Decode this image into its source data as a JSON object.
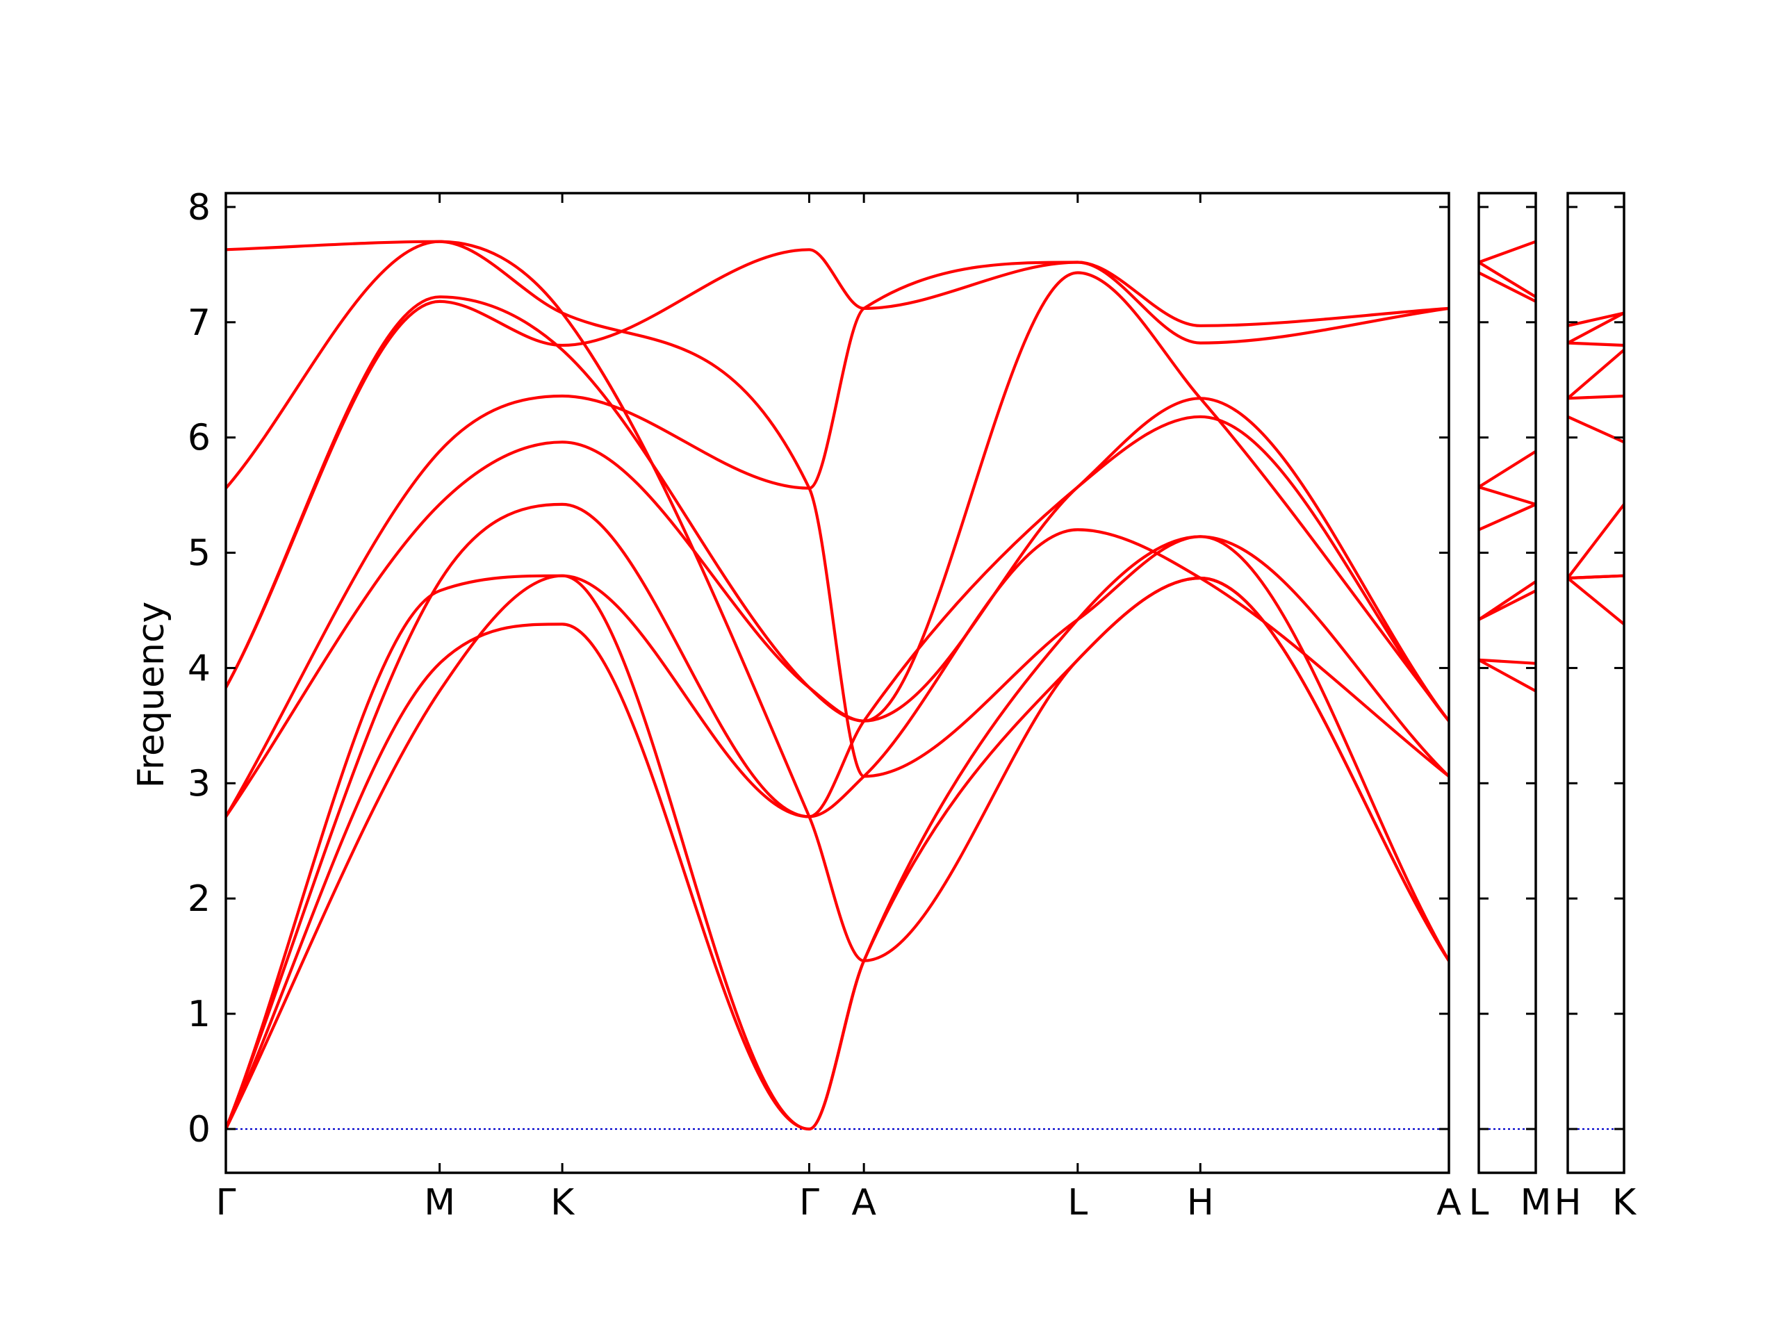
{
  "chart_data": {
    "type": "line",
    "ylabel": "Frequency",
    "ylim": [
      -0.38,
      8.12
    ],
    "yticks": [
      0,
      1,
      2,
      3,
      4,
      5,
      6,
      7,
      8
    ],
    "colors": {
      "bands": "#ff0000",
      "zero_line": "#0000cc"
    },
    "panels": [
      {
        "x_range": [
          0,
          7.38
        ],
        "kpoints": [
          {
            "label": "Γ",
            "x": 0
          },
          {
            "label": "M",
            "x": 1.29
          },
          {
            "label": "K",
            "x": 2.03
          },
          {
            "label": "Γ",
            "x": 3.52
          },
          {
            "label": "A",
            "x": 3.85
          },
          {
            "label": "L",
            "x": 5.14
          },
          {
            "label": "H",
            "x": 5.88
          },
          {
            "label": "A",
            "x": 7.38
          }
        ],
        "bands": [
          [
            [
              0,
              0
            ],
            [
              1.29,
              3.8
            ],
            [
              2.03,
              4.8
            ],
            [
              3.52,
              0
            ],
            [
              3.85,
              1.46
            ],
            [
              5.14,
              4.07
            ],
            [
              5.88,
              4.78
            ],
            [
              7.38,
              1.46
            ]
          ],
          [
            [
              0,
              0
            ],
            [
              1.29,
              4.04
            ],
            [
              2.03,
              4.38
            ],
            [
              3.52,
              0
            ],
            [
              3.85,
              1.46
            ],
            [
              5.14,
              4.42
            ],
            [
              5.88,
              5.14
            ],
            [
              7.38,
              1.46
            ]
          ],
          [
            [
              0,
              0
            ],
            [
              1.29,
              4.67
            ],
            [
              2.03,
              4.8
            ],
            [
              3.52,
              2.71
            ],
            [
              3.85,
              3.06
            ],
            [
              5.14,
              5.2
            ],
            [
              5.88,
              4.78
            ],
            [
              7.38,
              3.06
            ]
          ],
          [
            [
              0,
              0
            ],
            [
              1.29,
              4.75
            ],
            [
              2.03,
              5.42
            ],
            [
              3.52,
              2.71
            ],
            [
              3.85,
              3.54
            ],
            [
              5.14,
              5.57
            ],
            [
              5.88,
              6.18
            ],
            [
              7.38,
              3.54
            ]
          ],
          [
            [
              0,
              2.71
            ],
            [
              1.29,
              5.42
            ],
            [
              2.03,
              5.96
            ],
            [
              3.52,
              3.83
            ],
            [
              3.85,
              3.54
            ],
            [
              5.14,
              7.43
            ],
            [
              5.88,
              6.34
            ],
            [
              7.38,
              3.54
            ]
          ],
          [
            [
              0,
              2.71
            ],
            [
              1.29,
              5.88
            ],
            [
              2.03,
              6.36
            ],
            [
              3.52,
              5.56
            ],
            [
              3.85,
              7.12
            ],
            [
              5.14,
              7.52
            ],
            [
              5.88,
              6.82
            ],
            [
              7.38,
              7.12
            ]
          ],
          [
            [
              0,
              3.83
            ],
            [
              1.29,
              7.18
            ],
            [
              2.03,
              6.8
            ],
            [
              3.52,
              7.63
            ],
            [
              3.85,
              7.12
            ],
            [
              5.14,
              7.52
            ],
            [
              5.88,
              6.97
            ],
            [
              7.38,
              7.12
            ]
          ],
          [
            [
              0,
              3.83
            ],
            [
              1.29,
              7.22
            ],
            [
              2.03,
              6.76
            ],
            [
              3.52,
              3.83
            ],
            [
              3.85,
              3.54
            ],
            [
              5.14,
              5.57
            ],
            [
              5.88,
              6.34
            ],
            [
              7.38,
              3.54
            ]
          ],
          [
            [
              0,
              5.56
            ],
            [
              1.29,
              7.7
            ],
            [
              2.03,
              7.08
            ],
            [
              3.52,
              2.71
            ],
            [
              3.85,
              1.46
            ],
            [
              5.14,
              4.07
            ],
            [
              5.88,
              4.78
            ],
            [
              7.38,
              1.46
            ]
          ],
          [
            [
              0,
              7.63
            ],
            [
              1.29,
              7.7
            ],
            [
              2.03,
              7.08
            ],
            [
              3.52,
              5.56
            ],
            [
              3.85,
              3.06
            ],
            [
              5.14,
              4.42
            ],
            [
              5.88,
              5.14
            ],
            [
              7.38,
              3.06
            ]
          ]
        ]
      },
      {
        "x_range": [
          0,
          0.34
        ],
        "kpoints": [
          {
            "label": "L",
            "x": 0
          },
          {
            "label": "M",
            "x": 0.34
          }
        ],
        "bands": [
          [
            [
              0,
              4.07
            ],
            [
              0.34,
              3.8
            ]
          ],
          [
            [
              0,
              4.07
            ],
            [
              0.34,
              4.04
            ]
          ],
          [
            [
              0,
              4.42
            ],
            [
              0.34,
              4.67
            ]
          ],
          [
            [
              0,
              4.42
            ],
            [
              0.34,
              4.75
            ]
          ],
          [
            [
              0,
              5.2
            ],
            [
              0.34,
              5.42
            ]
          ],
          [
            [
              0,
              5.57
            ],
            [
              0.34,
              5.42
            ]
          ],
          [
            [
              0,
              5.57
            ],
            [
              0.34,
              5.88
            ]
          ],
          [
            [
              0,
              7.43
            ],
            [
              0.34,
              7.18
            ]
          ],
          [
            [
              0,
              7.52
            ],
            [
              0.34,
              7.22
            ]
          ],
          [
            [
              0,
              7.52
            ],
            [
              0.34,
              7.7
            ]
          ]
        ]
      },
      {
        "x_range": [
          0,
          0.34
        ],
        "kpoints": [
          {
            "label": "H",
            "x": 0
          },
          {
            "label": "K",
            "x": 0.34
          }
        ],
        "bands": [
          [
            [
              0,
              4.78
            ],
            [
              0.34,
              4.38
            ]
          ],
          [
            [
              0,
              4.78
            ],
            [
              0.34,
              4.8
            ]
          ],
          [
            [
              0,
              4.78
            ],
            [
              0.34,
              4.8
            ]
          ],
          [
            [
              0,
              4.78
            ],
            [
              0.34,
              5.42
            ]
          ],
          [
            [
              0,
              6.18
            ],
            [
              0.34,
              5.96
            ]
          ],
          [
            [
              0,
              6.34
            ],
            [
              0.34,
              6.36
            ]
          ],
          [
            [
              0,
              6.34
            ],
            [
              0.34,
              6.76
            ]
          ],
          [
            [
              0,
              6.82
            ],
            [
              0.34,
              6.8
            ]
          ],
          [
            [
              0,
              6.97
            ],
            [
              0.34,
              7.08
            ]
          ],
          [
            [
              0,
              6.82
            ],
            [
              0.34,
              7.08
            ]
          ]
        ]
      }
    ]
  }
}
